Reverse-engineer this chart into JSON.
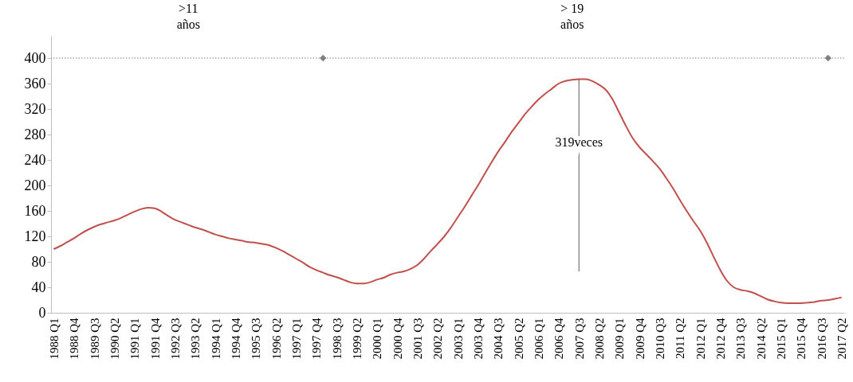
{
  "chart_data": {
    "type": "line",
    "categories": [
      "1988 Q1",
      null,
      null,
      "1988 Q4",
      null,
      null,
      "1989 Q3",
      null,
      null,
      "1990 Q2",
      null,
      null,
      "1991 Q1",
      null,
      null,
      "1991 Q4",
      null,
      null,
      "1992 Q3",
      null,
      null,
      "1993 Q2",
      null,
      null,
      "1994 Q1",
      null,
      null,
      "1994 Q4",
      null,
      null,
      "1995 Q3",
      null,
      null,
      "1996 Q2",
      null,
      null,
      "1997 Q1",
      null,
      null,
      "1997 Q4",
      null,
      null,
      "1998 Q3",
      null,
      null,
      "1999 Q2",
      null,
      null,
      "2000 Q1",
      null,
      null,
      "2000 Q4",
      null,
      null,
      "2001 Q3",
      null,
      null,
      "2002 Q2",
      null,
      null,
      "2003 Q1",
      null,
      null,
      "2003 Q4",
      null,
      null,
      "2004 Q3",
      null,
      null,
      "2005 Q2",
      null,
      null,
      "2006 Q1",
      null,
      null,
      "2006 Q4",
      null,
      null,
      "2007 Q3",
      null,
      null,
      "2008 Q2",
      null,
      null,
      "2009 Q1",
      null,
      null,
      "2009 Q4",
      null,
      null,
      "2010 Q3",
      null,
      null,
      "2011 Q2",
      null,
      null,
      "2012 Q1",
      null,
      null,
      "2012 Q4",
      null,
      null,
      "2013 Q3",
      null,
      null,
      "2014 Q2",
      null,
      null,
      "2015 Q1",
      null,
      null,
      "2015 Q4",
      null,
      null,
      "2016 Q3",
      null,
      null,
      "2017 Q2"
    ],
    "series": [
      {
        "color": "#c0504d",
        "values": [
          100,
          105,
          111,
          117,
          124,
          130,
          135,
          139,
          142,
          145,
          149,
          154,
          159,
          163,
          165,
          164,
          159,
          152,
          146,
          142,
          138,
          134,
          131,
          127,
          123,
          120,
          117,
          115,
          113,
          111,
          110,
          108,
          106,
          102,
          97,
          91,
          85,
          79,
          72,
          67,
          63,
          59,
          56,
          52,
          48,
          46,
          46,
          48,
          52,
          55,
          60,
          63,
          65,
          69,
          75,
          85,
          97,
          108,
          120,
          134,
          150,
          166,
          183,
          200,
          218,
          236,
          253,
          268,
          284,
          298,
          312,
          324,
          335,
          344,
          352,
          360,
          364,
          366,
          367,
          367,
          364,
          358,
          350,
          335,
          314,
          293,
          274,
          260,
          249,
          238,
          226,
          211,
          195,
          177,
          160,
          144,
          129,
          110,
          88,
          67,
          50,
          40,
          36,
          34,
          31,
          26,
          21,
          18,
          16,
          15,
          15,
          15,
          16,
          17,
          19,
          20,
          22,
          24
        ]
      },
      {
        "type": "scatter",
        "marker": "diamond",
        "color": "#7f7f7f",
        "values": [
          null,
          null,
          null,
          null,
          null,
          null,
          null,
          null,
          null,
          null,
          null,
          null,
          null,
          null,
          null,
          null,
          null,
          null,
          null,
          null,
          null,
          null,
          null,
          null,
          null,
          null,
          null,
          null,
          null,
          null,
          null,
          null,
          null,
          null,
          null,
          null,
          null,
          null,
          null,
          null,
          400,
          null,
          null,
          null,
          null,
          null,
          null,
          null,
          null,
          null,
          null,
          null,
          null,
          null,
          null,
          null,
          null,
          null,
          null,
          null,
          null,
          null,
          null,
          null,
          null,
          null,
          null,
          null,
          null,
          null,
          null,
          null,
          null,
          null,
          null,
          null,
          null,
          null,
          null,
          null,
          null,
          null,
          null,
          null,
          null,
          null,
          null,
          null,
          null,
          null,
          null,
          null,
          null,
          null,
          null,
          null,
          null,
          null,
          null,
          null,
          null,
          null,
          null,
          null,
          null,
          null,
          null,
          null,
          null,
          null,
          null,
          null,
          null,
          null,
          null,
          400,
          null,
          null
        ]
      },
      {
        "type": "line",
        "color": "#595959",
        "x": [
          "2007 Q3",
          "2007 Q3"
        ],
        "values": [
          367,
          65
        ]
      }
    ],
    "ylim": [
      0,
      435
    ],
    "yticks": [
      0,
      40,
      80,
      120,
      160,
      200,
      240,
      280,
      320,
      360,
      400
    ],
    "ref_lines": [
      {
        "axis": "y",
        "value": 400,
        "color": "#7f7f7f",
        "line_style": "dotted"
      }
    ],
    "annotations": [
      ">11\naños",
      "> 19\naños",
      "319veces"
    ],
    "grid": false
  }
}
